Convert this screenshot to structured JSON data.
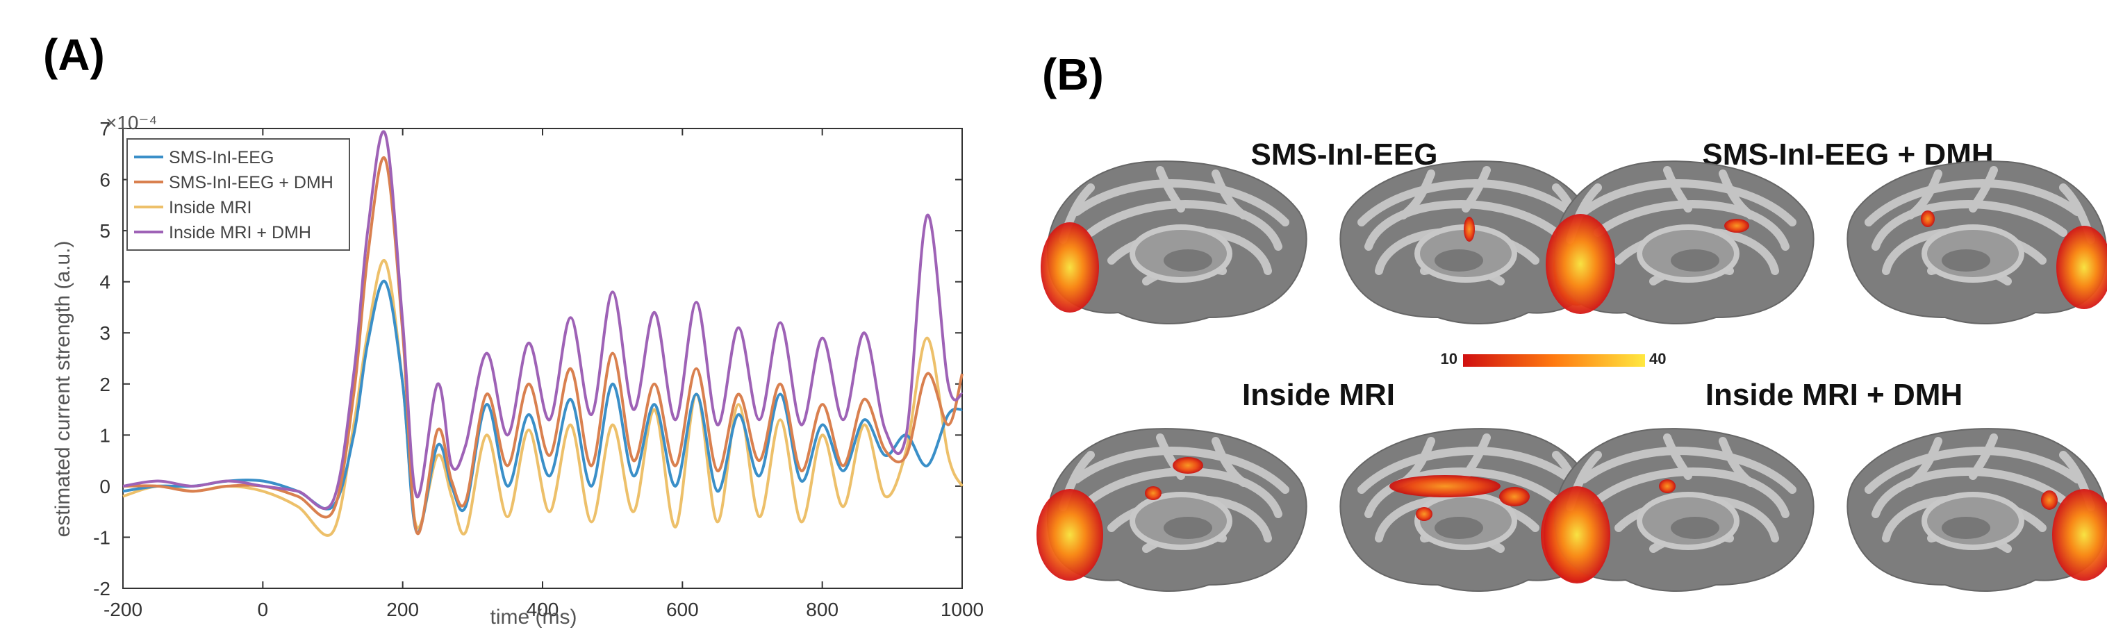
{
  "panel_a_label": "(A)",
  "panel_b_label": "(B)",
  "chart_data": {
    "type": "line",
    "xlabel": "time (ms)",
    "ylabel": "estimated current strength (a.u.)",
    "exponent_label": "×10⁻⁴",
    "xlim": [
      -200,
      1000
    ],
    "ylim": [
      -2,
      7
    ],
    "xticks": [
      -200,
      0,
      200,
      400,
      600,
      800,
      1000
    ],
    "yticks": [
      -2,
      -1,
      0,
      1,
      2,
      3,
      4,
      5,
      6,
      7
    ],
    "legend_position": "top-left",
    "colors": [
      "#3a8fc8",
      "#d9804f",
      "#edc06a",
      "#9e62b6"
    ],
    "series": [
      {
        "name": "SMS-InI-EEG",
        "x": [
          -200,
          -150,
          -100,
          -50,
          0,
          50,
          100,
          130,
          150,
          175,
          200,
          220,
          250,
          270,
          290,
          320,
          350,
          380,
          410,
          440,
          470,
          500,
          530,
          560,
          590,
          620,
          650,
          680,
          710,
          740,
          770,
          800,
          830,
          860,
          890,
          920,
          950,
          980,
          1000
        ],
        "values": [
          -0.1,
          0.0,
          0.0,
          0.1,
          0.1,
          -0.1,
          -0.4,
          1.0,
          2.8,
          4.0,
          2.0,
          -0.9,
          0.8,
          0.0,
          -0.4,
          1.6,
          0.0,
          1.4,
          0.2,
          1.7,
          0.0,
          2.0,
          0.2,
          1.6,
          0.0,
          1.8,
          -0.1,
          1.4,
          0.2,
          1.8,
          0.1,
          1.2,
          0.3,
          1.3,
          0.6,
          1.0,
          0.4,
          1.4,
          1.5
        ]
      },
      {
        "name": "SMS-InI-EEG + DMH",
        "x": [
          -200,
          -150,
          -100,
          -50,
          0,
          50,
          100,
          130,
          150,
          175,
          200,
          220,
          250,
          270,
          290,
          320,
          350,
          380,
          410,
          440,
          470,
          500,
          530,
          560,
          590,
          620,
          650,
          680,
          710,
          740,
          770,
          800,
          830,
          860,
          890,
          920,
          950,
          980,
          1000
        ],
        "values": [
          0.0,
          0.0,
          -0.1,
          0.0,
          0.0,
          -0.2,
          -0.5,
          1.8,
          4.5,
          6.4,
          3.0,
          -0.9,
          1.1,
          0.1,
          -0.3,
          1.8,
          0.4,
          2.0,
          0.6,
          2.3,
          0.4,
          2.6,
          0.5,
          2.0,
          0.4,
          2.3,
          0.3,
          1.8,
          0.5,
          2.0,
          0.3,
          1.6,
          0.4,
          1.7,
          0.7,
          0.6,
          2.2,
          1.2,
          2.2
        ]
      },
      {
        "name": "Inside MRI",
        "x": [
          -200,
          -150,
          -100,
          -50,
          0,
          50,
          100,
          130,
          150,
          175,
          200,
          220,
          250,
          270,
          290,
          320,
          350,
          380,
          410,
          440,
          470,
          500,
          530,
          560,
          590,
          620,
          650,
          680,
          710,
          740,
          770,
          800,
          830,
          860,
          890,
          920,
          950,
          980,
          1000
        ],
        "values": [
          -0.2,
          0.0,
          -0.1,
          0.0,
          -0.1,
          -0.4,
          -0.9,
          1.2,
          3.0,
          4.4,
          2.0,
          -0.8,
          0.6,
          -0.2,
          -0.9,
          1.0,
          -0.6,
          1.1,
          -0.5,
          1.2,
          -0.7,
          1.2,
          -0.5,
          1.5,
          -0.8,
          1.8,
          -0.7,
          1.6,
          -0.6,
          1.3,
          -0.7,
          1.0,
          -0.4,
          1.2,
          -0.2,
          0.7,
          2.9,
          0.6,
          0.0
        ]
      },
      {
        "name": "Inside MRI + DMH",
        "x": [
          -200,
          -150,
          -100,
          -50,
          0,
          50,
          100,
          130,
          150,
          175,
          200,
          220,
          250,
          270,
          290,
          320,
          350,
          380,
          410,
          440,
          470,
          500,
          530,
          560,
          590,
          620,
          650,
          680,
          710,
          740,
          770,
          800,
          830,
          860,
          890,
          920,
          950,
          980,
          1000
        ],
        "values": [
          0.0,
          0.1,
          0.0,
          0.1,
          0.0,
          -0.1,
          -0.3,
          2.2,
          5.0,
          6.9,
          3.2,
          -0.2,
          2.0,
          0.4,
          0.8,
          2.6,
          1.0,
          2.8,
          1.3,
          3.3,
          1.4,
          3.8,
          1.5,
          3.4,
          1.3,
          3.6,
          1.2,
          3.1,
          1.3,
          3.2,
          1.2,
          2.9,
          1.3,
          3.0,
          1.1,
          1.0,
          5.3,
          2.0,
          1.8
        ]
      }
    ]
  },
  "brain_panels": {
    "titles": [
      "SMS-InI-EEG",
      "SMS-InI-EEG + DMH",
      "Inside MRI",
      "Inside MRI + DMH"
    ],
    "colorbar": {
      "min_label": "10",
      "max_label": "40",
      "colors": [
        "#d01010",
        "#ff7a10",
        "#ffe840"
      ]
    }
  }
}
